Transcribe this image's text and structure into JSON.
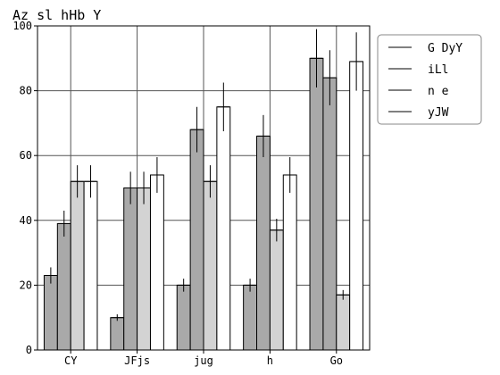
{
  "chart_data": {
    "type": "bar",
    "title": "Az sl hHb Y",
    "xlabel": "",
    "ylabel": "",
    "categories": [
      "CY",
      "JFjs",
      "jug",
      "h",
      "Go"
    ],
    "ylim": [
      0,
      100
    ],
    "yticks": [
      0,
      20,
      40,
      60,
      80,
      100
    ],
    "grid": true,
    "legend_position": "top-right",
    "series": [
      {
        "name": "G DyY",
        "color": "#a9a9a9",
        "values": [
          23,
          10,
          20,
          20,
          90
        ],
        "errors": [
          2.5,
          1,
          2,
          2,
          9
        ]
      },
      {
        "name": "iLl",
        "color": "#a9a9a9",
        "values": [
          39,
          50,
          68,
          66,
          84
        ],
        "errors": [
          4,
          5,
          7,
          6.5,
          8.5
        ]
      },
      {
        "name": "n e",
        "color": "#d3d3d3",
        "values": [
          52,
          50,
          52,
          37,
          17
        ],
        "errors": [
          5,
          5,
          5,
          3.5,
          1.5
        ]
      },
      {
        "name": "yJW",
        "color": "#ffffff",
        "values": [
          52,
          54,
          75,
          54,
          89
        ],
        "errors": [
          5,
          5.5,
          7.5,
          5.5,
          9
        ]
      }
    ]
  }
}
